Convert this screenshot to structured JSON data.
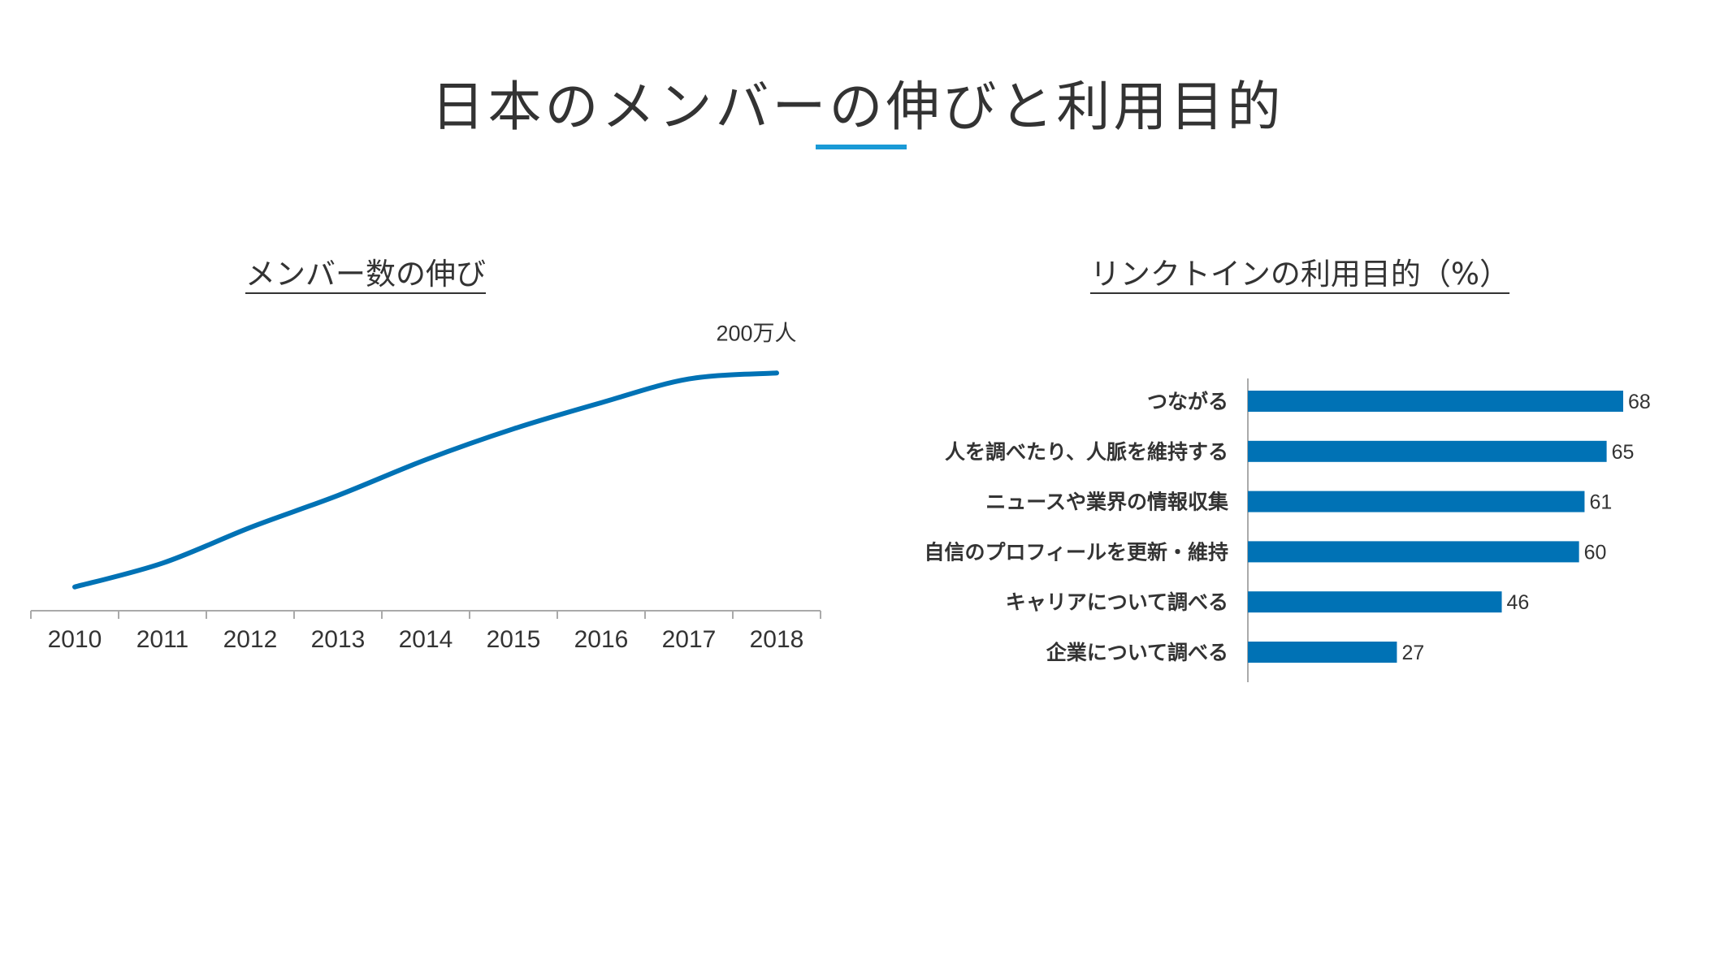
{
  "page": {
    "title": "日本のメンバーの伸びと利用目的"
  },
  "colors": {
    "series": "#0072b5",
    "accent": "#1a9ad6",
    "axis": "#aaaaaa",
    "text": "#333333"
  },
  "chart_data": [
    {
      "type": "line",
      "title": "メンバー数の伸び",
      "xlabel": "",
      "ylabel": "",
      "x": [
        "2010",
        "2011",
        "2012",
        "2013",
        "2014",
        "2015",
        "2016",
        "2017",
        "2018"
      ],
      "series": [
        {
          "values": [
            0.2,
            0.4,
            0.7,
            0.97,
            1.27,
            1.53,
            1.75,
            1.95,
            2.0
          ]
        }
      ],
      "ylim": [
        0,
        2.2
      ],
      "grid": false,
      "annotations": [
        {
          "x": "2018",
          "text": "200万人"
        }
      ]
    },
    {
      "type": "bar",
      "orientation": "horizontal",
      "title": "リンクトインの利用目的（%）",
      "categories": [
        "つながる",
        "人を調べたり、人脈を維持する",
        "ニュースや業界の情報収集",
        "自信のプロフィールを更新・維持",
        "キャリアについて調べる",
        "企業について調べる"
      ],
      "values": [
        68,
        65,
        61,
        60,
        46,
        27
      ],
      "xlim": [
        0,
        68
      ],
      "grid": false
    }
  ]
}
